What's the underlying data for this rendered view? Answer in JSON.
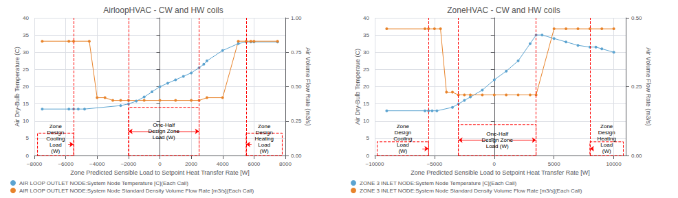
{
  "chart_data": [
    {
      "type": "line",
      "title": "AirloopHVAC - CW and HW coils",
      "x_label": "Zone Predicted Sensible Load to Setpoint Heat Transfer Rate [W]",
      "y_label": "Air Dry-Bulb Temperature (C)",
      "y2_label": "Air Volume Flow Rate (m3/s)",
      "xlim": [
        -8000,
        8000
      ],
      "xticks": [
        {
          "value": -8000,
          "label": "−8000"
        },
        {
          "value": -6000,
          "label": "−6000"
        },
        {
          "value": -4000,
          "label": "−4000"
        },
        {
          "value": -2000,
          "label": "−2000"
        },
        0,
        2000,
        4000,
        6000,
        8000
      ],
      "ylim": [
        0,
        40
      ],
      "yticks": [
        0,
        5,
        10,
        15,
        20,
        25,
        30,
        35,
        40
      ],
      "y2lim": [
        0,
        1.0
      ],
      "y2ticks": [
        {
          "value": 0,
          "label": "0.00"
        },
        {
          "value": 0.25,
          "label": "0.25"
        },
        {
          "value": 0.5,
          "label": "0.50"
        },
        {
          "value": 0.75,
          "label": "0.75"
        },
        {
          "value": 1.0,
          "label": "1.00"
        }
      ],
      "grid": true,
      "legend": "lower left",
      "series": [
        {
          "name": "AIR LOOP OUTLET NODE:System Node Temperature [C](Each Call)",
          "color": "#5BA3D0",
          "marker": "circle",
          "x": [
            -7500,
            -5800,
            -5500,
            -5200,
            -4800,
            -2500,
            -2000,
            -1500,
            -1000,
            -500,
            0,
            500,
            1000,
            1500,
            2000,
            2500,
            2800,
            3000,
            4000,
            5000,
            5500,
            5800,
            6000,
            7500
          ],
          "values": [
            13.5,
            13.5,
            13.5,
            13.5,
            13.5,
            14.5,
            15.0,
            15.8,
            17.0,
            18.5,
            20.0,
            21.0,
            22.0,
            23.0,
            24.0,
            25.5,
            26.5,
            27.5,
            30.5,
            32.5,
            33.0,
            33.0,
            33.0,
            33.0
          ]
        },
        {
          "name": "AIR LOOP OUTLET NODE:System Node Standard Density Volume Flow Rate [m3/s](Each Call)",
          "color": "#E8832A",
          "marker": "circle",
          "axis": "y2",
          "x": [
            -7500,
            -5800,
            -5500,
            -4500,
            -4000,
            -3500,
            -3000,
            -2500,
            -2000,
            -1000,
            0,
            1000,
            2000,
            2500,
            3000,
            4000,
            5000,
            5500,
            5800,
            6000,
            7500
          ],
          "values": [
            0.83,
            0.83,
            0.83,
            0.83,
            0.42,
            0.42,
            0.4,
            0.4,
            0.4,
            0.4,
            0.4,
            0.4,
            0.4,
            0.4,
            0.42,
            0.42,
            0.83,
            0.83,
            0.83,
            0.83,
            0.83
          ]
        }
      ],
      "vlines": [
        {
          "x": -5500,
          "color": "#FF0000",
          "line_style": "dashed"
        },
        {
          "x": -2000,
          "color": "#FF0000",
          "line_style": "dashed"
        },
        {
          "x": 2500,
          "color": "#FF0000",
          "line_style": "dashed"
        },
        {
          "x": 5500,
          "color": "#FF0000",
          "line_style": "dashed"
        }
      ],
      "boxes": [
        {
          "x": [
            -7800,
            -5500
          ],
          "y": [
            0,
            6.5
          ],
          "text": "Zone\nDesign\nCooling\nLoad\n(W)",
          "color": "#FF0000",
          "line_style": "dashed"
        },
        {
          "x": [
            -2000,
            2500
          ],
          "y": [
            0,
            14
          ],
          "text": "One-Half\nDesign Zone\nLoad (W)",
          "color": "#FF0000",
          "line_style": "dashed"
        },
        {
          "x": [
            5500,
            7800
          ],
          "y": [
            0,
            6.5
          ],
          "text": "Zone\nDesign\nHeating\nLoad\n(W)",
          "color": "#FF0000",
          "line_style": "dashed"
        }
      ],
      "arrows": [
        {
          "from": [
            -5845,
            3.25
          ],
          "to": [
            -5500,
            3.25
          ],
          "color": "#FF0000"
        },
        {
          "from": [
            -425,
            7
          ],
          "to": [
            -2000,
            7
          ],
          "color": "#FF0000"
        },
        {
          "from": [
            925,
            7
          ],
          "to": [
            2500,
            7
          ],
          "color": "#FF0000"
        },
        {
          "from": [
            5845,
            3.25
          ],
          "to": [
            5500,
            3.25
          ],
          "color": "#FF0000"
        }
      ]
    },
    {
      "type": "line",
      "title": "ZoneHVAC - CW and HW coils",
      "x_label": "Zone Predicted Sensible Load to Setpoint Heat Transfer Rate [W]",
      "y_label": "Air Dry-Bulb Temperaue (C)",
      "y2_label": "Air Volume Flow Rate (m3/s)",
      "xlim": [
        -10000,
        11000
      ],
      "xticks": [
        {
          "value": -10000,
          "label": "−10000"
        },
        {
          "value": -5000,
          "label": "−5000"
        },
        0,
        5000,
        10000
      ],
      "ylim": [
        0,
        40
      ],
      "yticks": [
        0,
        5,
        10,
        15,
        20,
        25,
        30,
        35,
        40
      ],
      "y2lim": [
        0,
        0.5
      ],
      "y2ticks": [
        {
          "value": 0,
          "label": "0.00"
        },
        {
          "value": 0.25,
          "label": "0.25"
        },
        {
          "value": 0.5,
          "label": "0.50"
        }
      ],
      "grid": true,
      "legend": "lower left",
      "series": [
        {
          "name": "ZONE 3 INLET NODE:System Node Temperature [C](Each Call)",
          "color": "#5BA3D0",
          "marker": "circle",
          "x": [
            -9000,
            -5800,
            -5500,
            -5200,
            -4800,
            -3500,
            -3000,
            -2500,
            -2000,
            -1000,
            0,
            1000,
            2000,
            3000,
            3500,
            4000,
            5000,
            6000,
            7000,
            8000,
            8500,
            9000,
            10000
          ],
          "values": [
            13.0,
            13.0,
            13.0,
            13.0,
            13.0,
            14.0,
            15.0,
            16.0,
            17.0,
            19.0,
            22.0,
            24.5,
            27.5,
            32.5,
            35.0,
            35.0,
            34.0,
            33.0,
            32.0,
            31.5,
            31.5,
            31.0,
            30.0
          ]
        },
        {
          "name": "ZONE 3 INLET NODE:System Node Standard Density Volume Flow Rate [m3/s](Each Call)",
          "color": "#E8832A",
          "marker": "circle",
          "axis": "y2",
          "x": [
            -9000,
            -5800,
            -5500,
            -5000,
            -4500,
            -4000,
            -3500,
            -3000,
            -2500,
            -2000,
            -1000,
            0,
            1000,
            2000,
            3000,
            3500,
            5000,
            6000,
            7000,
            8000,
            9000,
            10000
          ],
          "values": [
            0.46,
            0.46,
            0.46,
            0.46,
            0.46,
            0.23,
            0.23,
            0.22,
            0.22,
            0.22,
            0.22,
            0.22,
            0.22,
            0.22,
            0.22,
            0.22,
            0.46,
            0.46,
            0.46,
            0.46,
            0.46,
            0.46
          ]
        }
      ],
      "vlines": [
        {
          "x": -5500,
          "color": "#FF0000",
          "line_style": "dashed"
        },
        {
          "x": -3000,
          "color": "#FF0000",
          "line_style": "dashed"
        },
        {
          "x": 3500,
          "color": "#FF0000",
          "line_style": "dashed"
        },
        {
          "x": 8000,
          "color": "#FF0000",
          "line_style": "dashed"
        }
      ],
      "boxes": [
        {
          "x": [
            -9800,
            -5500
          ],
          "y": [
            0,
            4.0
          ],
          "text": "Zone\nDesign\nCooling\nLoad\n(W)",
          "color": "#FF0000",
          "line_style": "dashed"
        },
        {
          "x": [
            -3000,
            3500
          ],
          "y": [
            0,
            9.0
          ],
          "text": "One-Half\nDesign Zone\nLoad (W)",
          "color": "#FF0000",
          "line_style": "dashed"
        },
        {
          "x": [
            8000,
            10800
          ],
          "y": [
            0,
            4.0
          ],
          "text": "Zone\nDesign\nHeating\nLoad\n(W)",
          "color": "#FF0000",
          "line_style": "dashed"
        }
      ],
      "arrows": [
        {
          "from": [
            -6016,
            2.0
          ],
          "to": [
            -5500,
            2.0
          ],
          "color": "#FF0000"
        },
        {
          "from": [
            -725,
            4.5
          ],
          "to": [
            -3000,
            4.5
          ],
          "color": "#FF0000"
        },
        {
          "from": [
            1225,
            4.5
          ],
          "to": [
            3500,
            4.5
          ],
          "color": "#FF0000"
        },
        {
          "from": [
            8336,
            2.0
          ],
          "to": [
            8000,
            2.0
          ],
          "color": "#FF0000"
        }
      ]
    }
  ]
}
